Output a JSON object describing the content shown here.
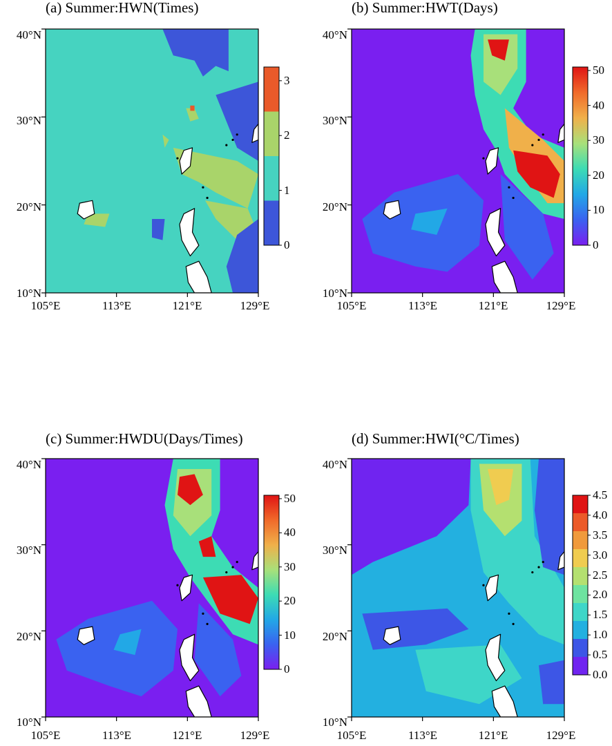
{
  "panels": [
    {
      "title": "(a) Summer:HWN(Times)",
      "colorbar": {
        "labels": [
          "0",
          "1",
          "2",
          "3"
        ],
        "values": [
          0,
          1,
          2,
          3
        ],
        "vmax": 3.25,
        "colors": [
          "#3d56d9",
          "#46d3c0",
          "#a9d46a",
          "#ea5a2a"
        ]
      }
    },
    {
      "title": "(b) Summer:HWT(Days)",
      "colorbar": {
        "labels": [
          "0",
          "10",
          "20",
          "30",
          "40",
          "50"
        ],
        "values": [
          0,
          10,
          20,
          30,
          40,
          50
        ],
        "vmax": 51,
        "colors": [
          "#7a1ff0",
          "#3a62f0",
          "#22a8e6",
          "#3ddcb4",
          "#a8e07a",
          "#f0b04a",
          "#f06a2a",
          "#e01414"
        ]
      }
    },
    {
      "title": "(c) Summer:HWDU(Days/Times)",
      "colorbar": {
        "labels": [
          "0",
          "10",
          "20",
          "30",
          "40",
          "50"
        ],
        "values": [
          0,
          10,
          20,
          30,
          40,
          50
        ],
        "vmax": 51,
        "colors": [
          "#7a1ff0",
          "#3a62f0",
          "#22a8e6",
          "#3ddcb4",
          "#a8e07a",
          "#f0b04a",
          "#f06a2a",
          "#e01414"
        ]
      }
    },
    {
      "title": "(d) Summer:HWI(°C/Times)",
      "colorbar": {
        "labels": [
          "0.0",
          "0.5",
          "1.0",
          "1.5",
          "2.0",
          "2.5",
          "3.0",
          "3.5",
          "4.0",
          "4.5"
        ],
        "values": [
          0,
          0.5,
          1,
          1.5,
          2,
          2.5,
          3,
          3.5,
          4,
          4.5
        ],
        "vmax": 4.5,
        "colors": [
          "#7024f0",
          "#3d56e6",
          "#23b0e0",
          "#3ed6c8",
          "#6ee3a0",
          "#b4e070",
          "#f0cc50",
          "#f09a3c",
          "#ec5a28",
          "#e01414"
        ]
      }
    }
  ],
  "map_axes": {
    "lat_ticks": [
      "10°N",
      "20°N",
      "30°N",
      "40°N"
    ],
    "lon_ticks": [
      "105°E",
      "113°E",
      "121°E",
      "129°E"
    ]
  },
  "colors": {
    "land": "#ffffff",
    "coast": "#000000"
  }
}
